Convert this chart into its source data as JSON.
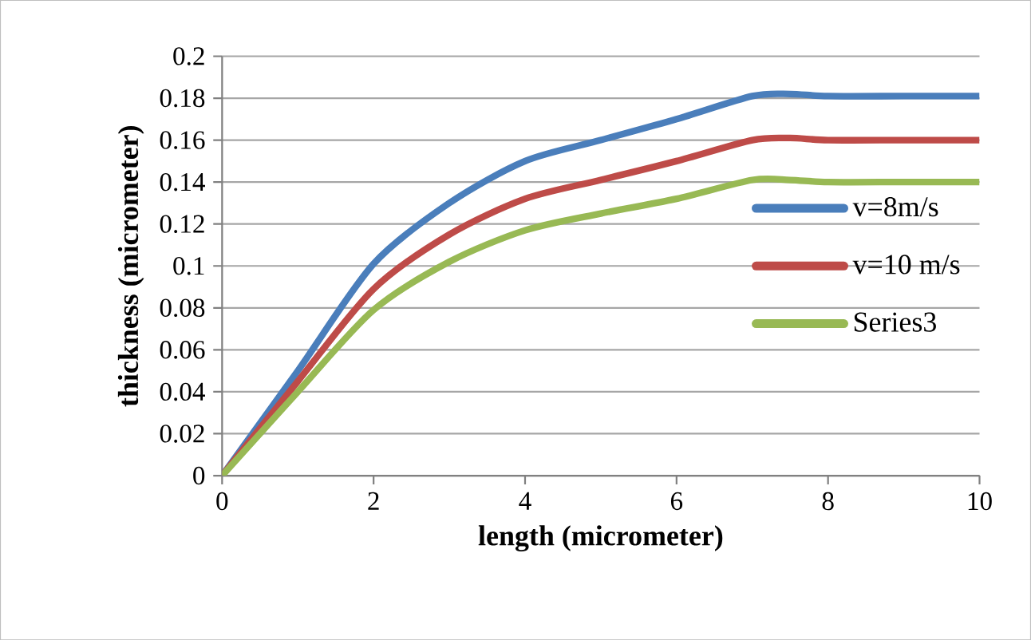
{
  "chart_data": {
    "type": "line",
    "xlabel": "length (micrometer)",
    "ylabel": "thickness (micrometer)",
    "xlim": [
      0,
      10
    ],
    "xticks": [
      0,
      2,
      4,
      6,
      8,
      10
    ],
    "ylim": [
      0,
      0.2
    ],
    "yticks": [
      0,
      0.02,
      0.04,
      0.06,
      0.08,
      0.1,
      0.12,
      0.14,
      0.16,
      0.18,
      0.2
    ],
    "grid": "y",
    "legend": "right",
    "marker": "none",
    "line_style": "solid",
    "series": [
      {
        "name": "v=8m/s",
        "color": "#4a7ebb",
        "x": [
          0,
          1,
          2,
          3,
          4,
          5,
          6,
          7,
          7.5,
          8,
          9,
          10
        ],
        "values": [
          0,
          0.05,
          0.101,
          0.13,
          0.15,
          0.16,
          0.17,
          0.181,
          0.182,
          0.181,
          0.181,
          0.181
        ]
      },
      {
        "name": "v=10 m/s",
        "color": "#be4b48",
        "x": [
          0,
          1,
          2,
          3,
          4,
          5,
          6,
          7,
          7.5,
          8,
          9,
          10
        ],
        "values": [
          0,
          0.045,
          0.089,
          0.115,
          0.132,
          0.141,
          0.15,
          0.16,
          0.161,
          0.16,
          0.16,
          0.16
        ]
      },
      {
        "name": "Series3",
        "color": "#98b954",
        "x": [
          0,
          1,
          2,
          3,
          4,
          5,
          6,
          7,
          7.5,
          8,
          9,
          10
        ],
        "values": [
          0,
          0.04,
          0.079,
          0.102,
          0.117,
          0.125,
          0.132,
          0.141,
          0.141,
          0.14,
          0.14,
          0.14
        ]
      }
    ]
  }
}
